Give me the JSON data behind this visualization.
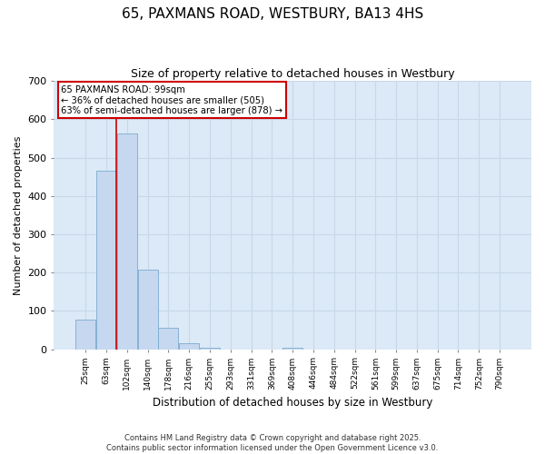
{
  "title": "65, PAXMANS ROAD, WESTBURY, BA13 4HS",
  "subtitle": "Size of property relative to detached houses in Westbury",
  "xlabel": "Distribution of detached houses by size in Westbury",
  "ylabel": "Number of detached properties",
  "bar_color": "#c5d8ef",
  "bar_edge_color": "#7aabcf",
  "background_color": "#dce9f7",
  "categories": [
    "25sqm",
    "63sqm",
    "102sqm",
    "140sqm",
    "178sqm",
    "216sqm",
    "255sqm",
    "293sqm",
    "331sqm",
    "369sqm",
    "408sqm",
    "446sqm",
    "484sqm",
    "522sqm",
    "561sqm",
    "599sqm",
    "637sqm",
    "675sqm",
    "714sqm",
    "752sqm",
    "790sqm"
  ],
  "values": [
    78,
    465,
    563,
    208,
    57,
    15,
    5,
    0,
    0,
    0,
    5,
    0,
    0,
    0,
    0,
    0,
    0,
    0,
    0,
    0,
    0
  ],
  "ylim": [
    0,
    700
  ],
  "yticks": [
    0,
    100,
    200,
    300,
    400,
    500,
    600,
    700
  ],
  "vline_x": 1.5,
  "vline_color": "#cc0000",
  "annotation_text": "65 PAXMANS ROAD: 99sqm\n← 36% of detached houses are smaller (505)\n63% of semi-detached houses are larger (878) →",
  "footer_text": "Contains HM Land Registry data © Crown copyright and database right 2025.\nContains public sector information licensed under the Open Government Licence v3.0.",
  "grid_color": "#c8d8e8"
}
